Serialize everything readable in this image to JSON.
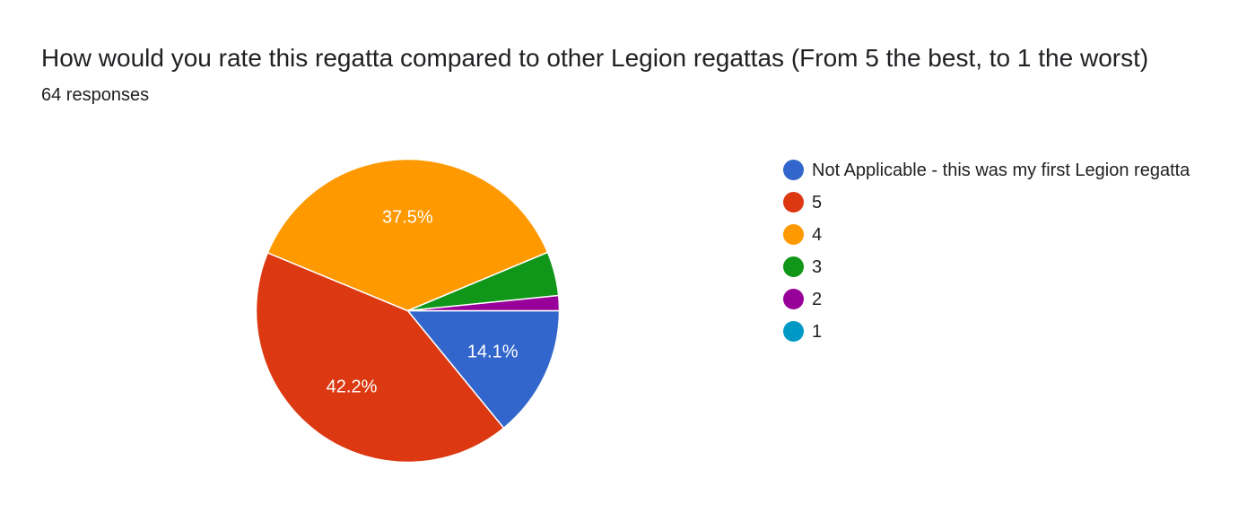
{
  "header": {
    "title": "How would you rate this regatta compared to other Legion regattas (From 5 the best, to 1 the worst)",
    "responses": "64 responses"
  },
  "chart_data": {
    "type": "pie",
    "title": "How would you rate this regatta compared to other Legion regattas (From 5 the best, to 1 the worst)",
    "total_responses": 64,
    "legend_position": "right",
    "slices": [
      {
        "label": "Not Applicable - this was my first Legion regatta",
        "value": 14.1,
        "count": 9,
        "color": "#3366cc",
        "data_label": "14.1%"
      },
      {
        "label": "5",
        "value": 42.2,
        "count": 27,
        "color": "#dc3912",
        "data_label": "42.2%"
      },
      {
        "label": "4",
        "value": 37.5,
        "count": 24,
        "color": "#ff9900",
        "data_label": "37.5%"
      },
      {
        "label": "3",
        "value": 4.7,
        "count": 3,
        "color": "#109618",
        "data_label": ""
      },
      {
        "label": "2",
        "value": 1.6,
        "count": 1,
        "color": "#990099",
        "data_label": ""
      },
      {
        "label": "1",
        "value": 0,
        "count": 0,
        "color": "#0099c6",
        "data_label": ""
      }
    ]
  }
}
